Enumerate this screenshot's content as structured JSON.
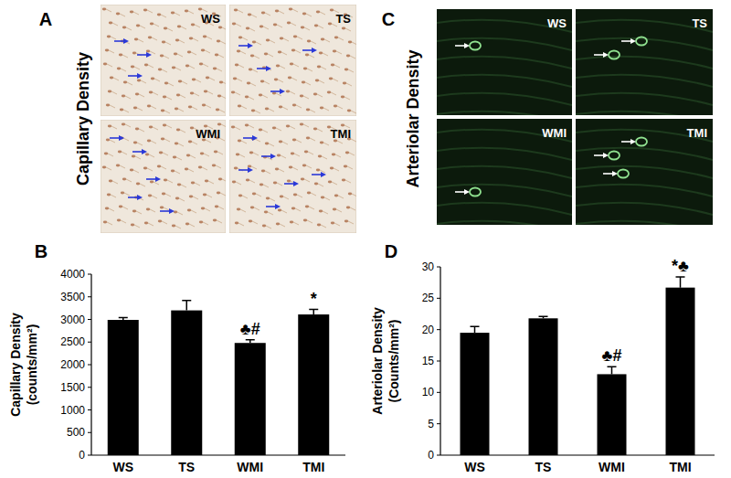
{
  "images": [
    {
      "letter": "A",
      "title": "Capillary Density",
      "labels": [
        "WS",
        "TS",
        "WMI",
        "TMI"
      ]
    },
    {
      "letter": "C",
      "title": "Arteriolar Density",
      "labels": [
        "WS",
        "TS",
        "WMI",
        "TMI"
      ]
    }
  ],
  "chart_data": [
    {
      "type": "bar",
      "panel_label": "B",
      "y_label": [
        "Capillary Density",
        "(counts/mm²)"
      ],
      "categories": [
        "WS",
        "TS",
        "WMI",
        "TMI"
      ],
      "values": [
        2990,
        3200,
        2480,
        3110
      ],
      "errors": [
        50,
        220,
        70,
        110
      ],
      "annotations": [
        null,
        null,
        "♣#",
        "*"
      ],
      "color": "#000000",
      "ylim": [
        0,
        4000
      ],
      "yticks": [
        0,
        500,
        1000,
        1500,
        2000,
        2500,
        3000,
        3500,
        4000
      ],
      "grid": false
    },
    {
      "type": "bar",
      "panel_label": "D",
      "y_label": [
        "Arteriolar Density",
        "(Counts/mm²)"
      ],
      "categories": [
        "WS",
        "TS",
        "WMI",
        "TMI"
      ],
      "values": [
        19.5,
        21.8,
        12.9,
        26.7
      ],
      "errors": [
        1.0,
        0.3,
        1.2,
        1.7
      ],
      "annotations": [
        null,
        null,
        "♣#",
        "*♣"
      ],
      "color": "#000000",
      "ylim": [
        0,
        30
      ],
      "yticks": [
        0,
        5,
        10,
        15,
        20,
        25,
        30
      ],
      "grid": false
    }
  ]
}
